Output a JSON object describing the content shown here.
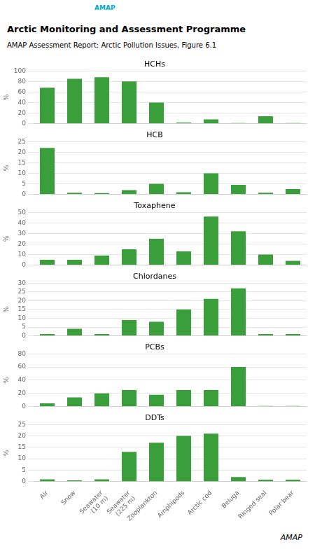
{
  "title": "Arctic Monitoring and Assessment Programme",
  "subtitle": "AMAP Assessment Report: Arctic Pollution Issues, Figure 6.1",
  "annotations": [
    "AMAP",
    "AMAP"
  ],
  "chart_data": [
    {
      "type": "bar",
      "title": "HCHs",
      "ylabel": "%",
      "categories": [
        "Air",
        "Snow",
        "Seawater\n(10 m)",
        "Seawater\n(225 m)",
        "Zooplankton",
        "Amphipods",
        "Arctic cod",
        "Beluga",
        "Ringed seal",
        "Polar bear"
      ],
      "values": [
        68,
        85,
        88,
        80,
        40,
        2,
        8,
        1,
        14,
        1
      ],
      "color": "#3a9e3a",
      "ylim": [
        0,
        100
      ],
      "yticks": [
        0,
        20,
        40,
        60,
        80,
        100
      ],
      "grid": true,
      "tick_labels": "y"
    },
    {
      "type": "bar",
      "title": "HCB",
      "ylabel": "%",
      "categories": [
        "Air",
        "Snow",
        "Seawater\n(10 m)",
        "Seawater\n(225 m)",
        "Zooplankton",
        "Amphipods",
        "Arctic cod",
        "Beluga",
        "Ringed seal",
        "Polar bear"
      ],
      "values": [
        22,
        0.8,
        0.6,
        2,
        5,
        1,
        10,
        4.5,
        0.8,
        2.5
      ],
      "color": "#3a9e3a",
      "ylim": [
        0,
        25
      ],
      "yticks": [
        0,
        5,
        10,
        15,
        20,
        25
      ],
      "grid": true,
      "tick_labels": "y"
    },
    {
      "type": "bar",
      "title": "Toxaphene",
      "ylabel": "%",
      "categories": [
        "Air",
        "Snow",
        "Seawater\n(10 m)",
        "Seawater\n(225 m)",
        "Zooplankton",
        "Amphipods",
        "Arctic cod",
        "Beluga",
        "Ringed seal",
        "Polar bear"
      ],
      "values": [
        5,
        5,
        9,
        15,
        25,
        13,
        46,
        32,
        10,
        4
      ],
      "color": "#3a9e3a",
      "ylim": [
        0,
        50
      ],
      "yticks": [
        0,
        10,
        20,
        30,
        40,
        50
      ],
      "grid": true,
      "tick_labels": "y"
    },
    {
      "type": "bar",
      "title": "Chlordanes",
      "ylabel": "%",
      "categories": [
        "Air",
        "Snow",
        "Seawater\n(10 m)",
        "Seawater\n(225 m)",
        "Zooplankton",
        "Amphipods",
        "Arctic cod",
        "Beluga",
        "Ringed seal",
        "Polar bear"
      ],
      "values": [
        1,
        4,
        1,
        9,
        8,
        15,
        21,
        27,
        1,
        1
      ],
      "color": "#3a9e3a",
      "ylim": [
        0,
        30
      ],
      "yticks": [
        0,
        5,
        10,
        15,
        20,
        25,
        30
      ],
      "grid": true,
      "tick_labels": "y"
    },
    {
      "type": "bar",
      "title": "PCBs",
      "ylabel": "%",
      "categories": [
        "Air",
        "Snow",
        "Seawater\n(10 m)",
        "Seawater\n(225 m)",
        "Zooplankton",
        "Amphipods",
        "Arctic cod",
        "Beluga",
        "Ringed seal",
        "Polar bear"
      ],
      "values": [
        5,
        14,
        20,
        25,
        18,
        25,
        25,
        60,
        1,
        1
      ],
      "color": "#3a9e3a",
      "ylim": [
        0,
        80
      ],
      "yticks": [
        0,
        20,
        40,
        60,
        80
      ],
      "grid": true,
      "tick_labels": "y"
    },
    {
      "type": "bar",
      "title": "DDTs",
      "ylabel": "%",
      "categories": [
        "Air",
        "Snow",
        "Seawater\n(10 m)",
        "Seawater\n(225 m)",
        "Zooplankton",
        "Amphipods",
        "Arctic cod",
        "Beluga",
        "Ringed seal",
        "Polar bear"
      ],
      "values": [
        1,
        0.5,
        1,
        13,
        17,
        20,
        21,
        2,
        0.8,
        0.8
      ],
      "color": "#3a9e3a",
      "ylim": [
        0,
        25
      ],
      "yticks": [
        0,
        5,
        10,
        15,
        20,
        25
      ],
      "grid": true
    }
  ]
}
